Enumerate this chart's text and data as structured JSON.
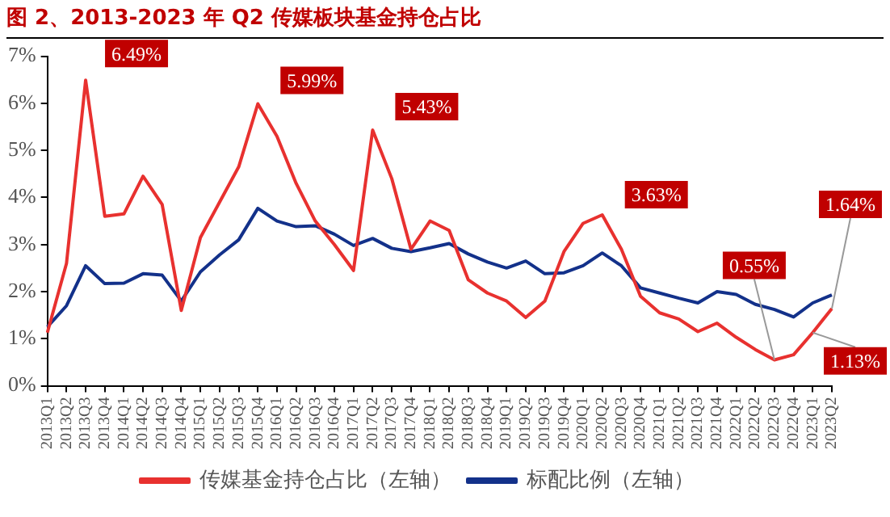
{
  "chart_data": {
    "type": "line",
    "title": "图 2、2013-2023 年 Q2 传媒板块基金持仓占比",
    "categories": [
      "2013Q1",
      "2013Q2",
      "2013Q3",
      "2013Q4",
      "2014Q1",
      "2014Q2",
      "2014Q3",
      "2014Q4",
      "2015Q1",
      "2015Q2",
      "2015Q3",
      "2015Q4",
      "2016Q1",
      "2016Q2",
      "2016Q3",
      "2016Q4",
      "2017Q1",
      "2017Q2",
      "2017Q3",
      "2017Q4",
      "2018Q1",
      "2018Q2",
      "2018Q3",
      "2018Q4",
      "2019Q1",
      "2019Q2",
      "2019Q3",
      "2019Q4",
      "2020Q1",
      "2020Q2",
      "2020Q3",
      "2020Q4",
      "2021Q1",
      "2021Q2",
      "2021Q3",
      "2021Q4",
      "2022Q1",
      "2022Q2",
      "2022Q3",
      "2022Q4",
      "2023Q1",
      "2023Q2"
    ],
    "series": [
      {
        "name": "传媒基金持仓占比（左轴）",
        "color": "#e8312f",
        "values": [
          1.13,
          2.6,
          6.49,
          3.6,
          3.65,
          4.45,
          3.85,
          1.6,
          3.15,
          3.9,
          4.65,
          5.99,
          5.3,
          4.3,
          3.5,
          3.0,
          2.45,
          5.43,
          4.4,
          2.9,
          3.5,
          3.3,
          2.25,
          1.97,
          1.8,
          1.45,
          1.8,
          2.85,
          3.45,
          3.63,
          2.9,
          1.9,
          1.55,
          1.42,
          1.15,
          1.33,
          1.03,
          0.77,
          0.55,
          0.66,
          1.13,
          1.64
        ]
      },
      {
        "name": "标配比例（左轴）",
        "color": "#13318a",
        "values": [
          1.25,
          1.7,
          2.55,
          2.17,
          2.18,
          2.38,
          2.35,
          1.8,
          2.42,
          2.78,
          3.1,
          3.77,
          3.5,
          3.38,
          3.4,
          3.22,
          2.98,
          3.13,
          2.92,
          2.85,
          2.93,
          3.02,
          2.8,
          2.63,
          2.5,
          2.65,
          2.38,
          2.4,
          2.55,
          2.82,
          2.55,
          2.08,
          1.97,
          1.86,
          1.76,
          2.0,
          1.94,
          1.73,
          1.62,
          1.46,
          1.76,
          1.93
        ]
      }
    ],
    "ylim": [
      0,
      7
    ],
    "yticks": [
      {
        "value": 0,
        "label": "0%"
      },
      {
        "value": 1,
        "label": "1%"
      },
      {
        "value": 2,
        "label": "2%"
      },
      {
        "value": 3,
        "label": "3%"
      },
      {
        "value": 4,
        "label": "4%"
      },
      {
        "value": 5,
        "label": "5%"
      },
      {
        "value": 6,
        "label": "6%"
      },
      {
        "value": 7,
        "label": "7%"
      }
    ],
    "annotations": [
      {
        "text": "6.49%",
        "x": "2013Q3",
        "y": 6.49
      },
      {
        "text": "5.99%",
        "x": "2015Q4",
        "y": 5.99
      },
      {
        "text": "5.43%",
        "x": "2017Q2",
        "y": 5.43
      },
      {
        "text": "3.63%",
        "x": "2020Q2",
        "y": 3.63
      },
      {
        "text": "0.55%",
        "x": "2022Q3",
        "y": 0.55
      },
      {
        "text": "1.13%",
        "x": "2023Q1",
        "y": 1.13
      },
      {
        "text": "1.64%",
        "x": "2023Q2",
        "y": 1.64
      }
    ],
    "grid": false,
    "legend": "bottom",
    "marker": "none",
    "line_style": "solid"
  }
}
